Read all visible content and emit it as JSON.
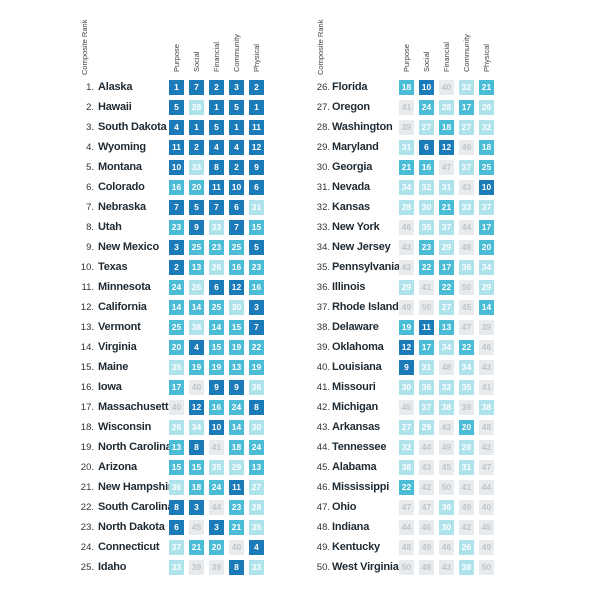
{
  "header": {
    "rank_label": "Composite Rank",
    "columns": [
      "Purpose",
      "Social",
      "Financial",
      "Community",
      "Physical"
    ]
  },
  "chart_data": {
    "type": "table",
    "columns": [
      "Purpose",
      "Social",
      "Financial",
      "Community",
      "Physical"
    ],
    "rows": [
      {
        "rank": "1.",
        "state": "Alaska",
        "values": [
          1,
          7,
          2,
          3,
          2
        ]
      },
      {
        "rank": "2.",
        "state": "Hawaii",
        "values": [
          5,
          28,
          1,
          5,
          1
        ]
      },
      {
        "rank": "3.",
        "state": "South Dakota",
        "values": [
          4,
          1,
          5,
          1,
          11
        ]
      },
      {
        "rank": "4.",
        "state": "Wyoming",
        "values": [
          11,
          2,
          4,
          4,
          12
        ]
      },
      {
        "rank": "5.",
        "state": "Montana",
        "values": [
          10,
          33,
          8,
          2,
          9
        ]
      },
      {
        "rank": "6.",
        "state": "Colorado",
        "values": [
          16,
          20,
          11,
          10,
          6
        ]
      },
      {
        "rank": "7.",
        "state": "Nebraska",
        "values": [
          7,
          5,
          7,
          6,
          31
        ]
      },
      {
        "rank": "8.",
        "state": "Utah",
        "values": [
          23,
          9,
          33,
          7,
          15
        ]
      },
      {
        "rank": "9.",
        "state": "New Mexico",
        "values": [
          3,
          25,
          23,
          25,
          5
        ]
      },
      {
        "rank": "10.",
        "state": "Texas",
        "values": [
          2,
          13,
          26,
          16,
          23
        ]
      },
      {
        "rank": "11.",
        "state": "Minnesota",
        "values": [
          24,
          26,
          6,
          12,
          16
        ]
      },
      {
        "rank": "12.",
        "state": "California",
        "values": [
          14,
          14,
          25,
          30,
          3
        ]
      },
      {
        "rank": "13.",
        "state": "Vermont",
        "values": [
          25,
          38,
          14,
          15,
          7
        ]
      },
      {
        "rank": "14.",
        "state": "Virginia",
        "values": [
          20,
          4,
          15,
          19,
          22
        ]
      },
      {
        "rank": "15.",
        "state": "Maine",
        "values": [
          35,
          19,
          19,
          13,
          19
        ]
      },
      {
        "rank": "16.",
        "state": "Iowa",
        "values": [
          17,
          40,
          9,
          9,
          36
        ]
      },
      {
        "rank": "17.",
        "state": "Massachusetts",
        "values": [
          40,
          12,
          16,
          24,
          8
        ]
      },
      {
        "rank": "18.",
        "state": "Wisconsin",
        "values": [
          26,
          34,
          10,
          14,
          30
        ]
      },
      {
        "rank": "19.",
        "state": "North Carolina",
        "values": [
          13,
          8,
          41,
          18,
          24
        ]
      },
      {
        "rank": "20.",
        "state": "Arizona",
        "values": [
          15,
          15,
          35,
          29,
          13
        ]
      },
      {
        "rank": "21.",
        "state": "New Hampshire",
        "values": [
          36,
          18,
          24,
          11,
          27
        ]
      },
      {
        "rank": "22.",
        "state": "South Carolina",
        "values": [
          8,
          3,
          44,
          23,
          28
        ]
      },
      {
        "rank": "23.",
        "state": "North Dakota",
        "values": [
          6,
          45,
          3,
          21,
          35
        ]
      },
      {
        "rank": "24.",
        "state": "Connecticut",
        "values": [
          37,
          21,
          20,
          40,
          4
        ]
      },
      {
        "rank": "25.",
        "state": "Idaho",
        "values": [
          33,
          39,
          39,
          8,
          33
        ]
      },
      {
        "rank": "26.",
        "state": "Florida",
        "values": [
          18,
          10,
          40,
          32,
          21
        ]
      },
      {
        "rank": "27.",
        "state": "Oregon",
        "values": [
          41,
          24,
          28,
          17,
          26
        ]
      },
      {
        "rank": "28.",
        "state": "Washington",
        "values": [
          39,
          27,
          18,
          27,
          32
        ]
      },
      {
        "rank": "29.",
        "state": "Maryland",
        "values": [
          31,
          6,
          12,
          46,
          18
        ]
      },
      {
        "rank": "30.",
        "state": "Georgia",
        "values": [
          21,
          16,
          47,
          37,
          25
        ]
      },
      {
        "rank": "31.",
        "state": "Nevada",
        "values": [
          34,
          32,
          31,
          43,
          10
        ]
      },
      {
        "rank": "32.",
        "state": "Kansas",
        "values": [
          28,
          30,
          21,
          33,
          37
        ]
      },
      {
        "rank": "33.",
        "state": "New York",
        "values": [
          46,
          35,
          37,
          44,
          17
        ]
      },
      {
        "rank": "34.",
        "state": "New Jersey",
        "values": [
          43,
          23,
          29,
          48,
          20
        ]
      },
      {
        "rank": "35.",
        "state": "Pennsylvania",
        "values": [
          42,
          22,
          17,
          36,
          34
        ]
      },
      {
        "rank": "36.",
        "state": "Illinois",
        "values": [
          29,
          41,
          22,
          50,
          29
        ]
      },
      {
        "rank": "37.",
        "state": "Rhode Island",
        "values": [
          49,
          50,
          27,
          45,
          14
        ]
      },
      {
        "rank": "38.",
        "state": "Delaware",
        "values": [
          19,
          11,
          13,
          47,
          39
        ]
      },
      {
        "rank": "39.",
        "state": "Oklahoma",
        "values": [
          12,
          17,
          34,
          22,
          46
        ]
      },
      {
        "rank": "40.",
        "state": "Louisiana",
        "values": [
          9,
          31,
          48,
          34,
          43
        ]
      },
      {
        "rank": "41.",
        "state": "Missouri",
        "values": [
          30,
          36,
          32,
          35,
          41
        ]
      },
      {
        "rank": "42.",
        "state": "Michigan",
        "values": [
          45,
          37,
          38,
          39,
          38
        ]
      },
      {
        "rank": "43.",
        "state": "Arkansas",
        "values": [
          27,
          29,
          42,
          20,
          48
        ]
      },
      {
        "rank": "44.",
        "state": "Tennessee",
        "values": [
          32,
          44,
          49,
          28,
          42
        ]
      },
      {
        "rank": "45.",
        "state": "Alabama",
        "values": [
          38,
          43,
          45,
          31,
          47
        ]
      },
      {
        "rank": "46.",
        "state": "Mississippi",
        "values": [
          22,
          42,
          50,
          41,
          44
        ]
      },
      {
        "rank": "47.",
        "state": "Ohio",
        "values": [
          47,
          47,
          36,
          49,
          40
        ]
      },
      {
        "rank": "48.",
        "state": "Indiana",
        "values": [
          44,
          46,
          30,
          42,
          45
        ]
      },
      {
        "rank": "49.",
        "state": "Kentucky",
        "values": [
          48,
          49,
          46,
          26,
          49
        ]
      },
      {
        "rank": "50.",
        "state": "West Virginia",
        "values": [
          50,
          48,
          43,
          38,
          50
        ]
      }
    ]
  },
  "colors": {
    "tier_1_to_12": "#1a7bb8",
    "tier_13_to_25": "#4bbcd6",
    "tier_26_to_38": "#aee3ec",
    "tier_39_to_50": "#e7ebed"
  }
}
